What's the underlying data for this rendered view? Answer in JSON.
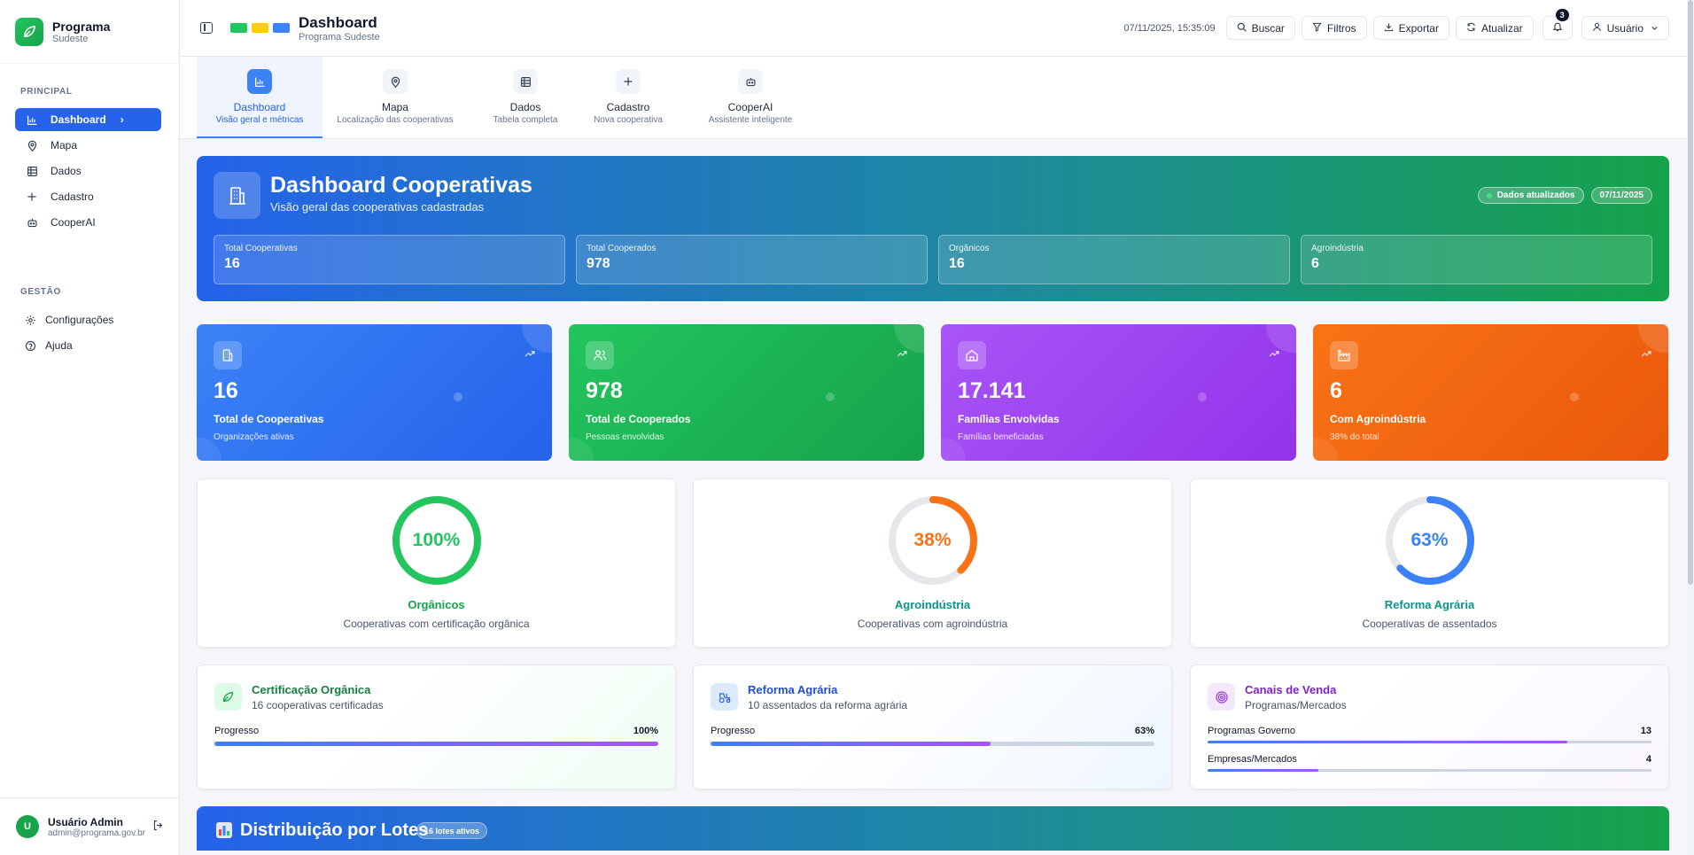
{
  "brand": {
    "title": "Programa",
    "subtitle": "Sudeste"
  },
  "sidebar": {
    "principal_label": "PRINCIPAL",
    "principal_items": [
      {
        "label": "Dashboard",
        "icon": "bar-chart-icon"
      },
      {
        "label": "Mapa",
        "icon": "map-pin-icon"
      },
      {
        "label": "Dados",
        "icon": "table-icon"
      },
      {
        "label": "Cadastro",
        "icon": "plus-icon"
      },
      {
        "label": "CooperAI",
        "icon": "bot-icon"
      }
    ],
    "gestao_label": "GESTÃO",
    "gestao_items": [
      {
        "label": "Configurações",
        "icon": "gear-icon"
      },
      {
        "label": "Ajuda",
        "icon": "help-icon"
      }
    ],
    "user": {
      "initial": "U",
      "name": "Usuário Admin",
      "email": "admin@programa.gov.br"
    }
  },
  "header": {
    "title": "Dashboard",
    "subtitle": "Programa Sudeste",
    "flag_colors": [
      "#22c55e",
      "#facc15",
      "#3b82f6"
    ],
    "datetime": "07/11/2025, 15:35:09",
    "buttons": {
      "search": "Buscar",
      "filters": "Filtros",
      "export": "Exportar",
      "refresh": "Atualizar"
    },
    "notifications_count": "3",
    "user_menu": "Usuário"
  },
  "tabs": [
    {
      "label": "Dashboard",
      "sub": "Visão geral e métricas",
      "active": true
    },
    {
      "label": "Mapa",
      "sub": "Localização das cooperativas"
    },
    {
      "label": "Dados",
      "sub": "Tabela completa"
    },
    {
      "label": "Cadastro",
      "sub": "Nova cooperativa"
    },
    {
      "label": "CooperAI",
      "sub": "Assistente inteligente"
    }
  ],
  "hero": {
    "title": "Dashboard Cooperativas",
    "subtitle": "Visão geral das cooperativas cadastradas",
    "badge_status": "Dados atualizados",
    "badge_date": "07/11/2025",
    "stats": [
      {
        "label": "Total Cooperativas",
        "value": "16"
      },
      {
        "label": "Total Cooperados",
        "value": "978"
      },
      {
        "label": "Orgânicos",
        "value": "16"
      },
      {
        "label": "Agroindústria",
        "value": "6"
      }
    ]
  },
  "metric_cards": [
    {
      "value": "16",
      "label": "Total de Cooperativas",
      "sub": "Organizações ativas",
      "color": "#2563eb"
    },
    {
      "value": "978",
      "label": "Total de Cooperados",
      "sub": "Pessoas envolvidas",
      "color": "#16a34a"
    },
    {
      "value": "17.141",
      "label": "Famílias Envolvidas",
      "sub": "Famílias beneficiadas",
      "color": "#9333ea"
    },
    {
      "value": "6",
      "label": "Com Agroindústria",
      "sub": "38% do total",
      "color": "#ea580c"
    }
  ],
  "rings": [
    {
      "percent_text": "100%",
      "percent": 100,
      "title": "Orgânicos",
      "sub": "Cooperativas com certificação orgânica",
      "color": "#22c55e"
    },
    {
      "percent_text": "38%",
      "percent": 38,
      "title": "Agroindústria",
      "sub": "Cooperativas com agroindústria",
      "color": "#f97316"
    },
    {
      "percent_text": "63%",
      "percent": 63,
      "title": "Reforma Agrária",
      "sub": "Cooperativas de assentados",
      "color": "#3b82f6"
    }
  ],
  "progress_cards": {
    "organica": {
      "title": "Certificação Orgânica",
      "sub": "16 cooperativas certificadas",
      "row_label": "Progresso",
      "row_value": "100%",
      "percent": 100
    },
    "reforma": {
      "title": "Reforma Agrária",
      "sub": "10 assentados da reforma agrária",
      "row_label": "Progresso",
      "row_value": "63%",
      "percent": 63
    },
    "canais": {
      "title": "Canais de Venda",
      "sub": "Programas/Mercados",
      "rows": [
        {
          "label": "Programas Governo",
          "value": "13",
          "percent": 81
        },
        {
          "label": "Empresas/Mercados",
          "value": "4",
          "percent": 25
        }
      ]
    }
  },
  "lotes": {
    "title": "Distribuição por Lotes",
    "badge": "16 lotes ativos"
  }
}
